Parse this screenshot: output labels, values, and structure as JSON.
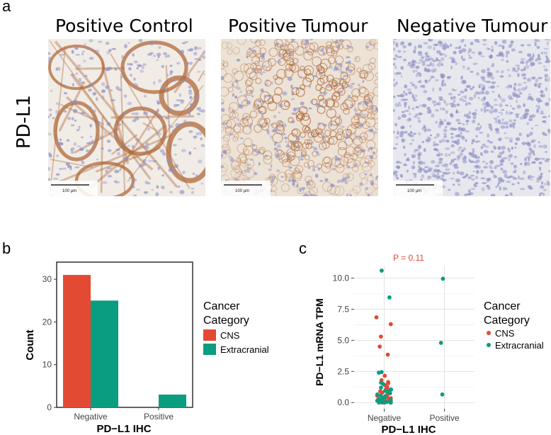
{
  "panel_a": {
    "letter": "a",
    "row_label": "PD-L1",
    "images": [
      {
        "title": "Positive Control",
        "scalebar": "100 µm",
        "stain": "membranous-network"
      },
      {
        "title": "Positive Tumour",
        "scalebar": "100 µm",
        "stain": "diffuse-membranous"
      },
      {
        "title": "Negative Tumour",
        "scalebar": "100 µm",
        "stain": "negative"
      }
    ],
    "colors": {
      "background": "#f1ece6",
      "nuclei": "#8d8fc4",
      "dab": "#b06a3a"
    }
  },
  "panel_b": {
    "letter": "b",
    "chart_data": {
      "type": "bar",
      "categories": [
        "Negative",
        "Positive"
      ],
      "series": [
        {
          "name": "CNS",
          "values": [
            31,
            0
          ],
          "color": "#e34a33"
        },
        {
          "name": "Extracranial",
          "values": [
            25,
            3
          ],
          "color": "#0a9d80"
        }
      ],
      "xlabel": "PD−L1 IHC",
      "ylabel": "Count",
      "ylim": [
        0,
        34
      ],
      "yticks": [
        0,
        10,
        20,
        30
      ],
      "legend": {
        "title": "Cancer\nCategory",
        "title_lines": [
          "Cancer",
          "Category"
        ],
        "placement": "right"
      },
      "grid": false
    }
  },
  "panel_c": {
    "letter": "c",
    "chart_data": {
      "type": "scatter",
      "categories": [
        "Negative",
        "Positive"
      ],
      "annotation": "P = 0.11",
      "annotation_color": "#e34a33",
      "xlabel": "PD−L1 IHC",
      "ylabel": "PD−L1 mRNA TPM",
      "ylim": [
        -0.5,
        11.0
      ],
      "yticks": [
        0.0,
        2.5,
        5.0,
        7.5,
        10.0
      ],
      "ytick_labels": [
        "0.0",
        "2.5",
        "5.0",
        "7.5",
        "10.0"
      ],
      "grid": true,
      "legend": {
        "title_lines": [
          "Cancer",
          "Category"
        ],
        "placement": "right"
      },
      "series": [
        {
          "name": "CNS",
          "color": "#e34a33",
          "points": [
            {
              "category": "Negative",
              "y": 6.85
            },
            {
              "category": "Negative",
              "y": 6.3
            },
            {
              "category": "Negative",
              "y": 5.3
            },
            {
              "category": "Negative",
              "y": 4.5
            },
            {
              "category": "Negative",
              "y": 3.85
            },
            {
              "category": "Negative",
              "y": 2.15
            },
            {
              "category": "Negative",
              "y": 1.8
            },
            {
              "category": "Negative",
              "y": 1.65
            },
            {
              "category": "Negative",
              "y": 1.55
            },
            {
              "category": "Negative",
              "y": 1.4
            },
            {
              "category": "Negative",
              "y": 1.25
            },
            {
              "category": "Negative",
              "y": 1.1
            },
            {
              "category": "Negative",
              "y": 1.0
            },
            {
              "category": "Negative",
              "y": 0.9
            },
            {
              "category": "Negative",
              "y": 0.8
            },
            {
              "category": "Negative",
              "y": 0.7
            },
            {
              "category": "Negative",
              "y": 0.6
            },
            {
              "category": "Negative",
              "y": 0.55
            },
            {
              "category": "Negative",
              "y": 0.45
            },
            {
              "category": "Negative",
              "y": 0.4
            },
            {
              "category": "Negative",
              "y": 0.35
            },
            {
              "category": "Negative",
              "y": 0.3
            },
            {
              "category": "Negative",
              "y": 0.25
            },
            {
              "category": "Negative",
              "y": 0.2
            },
            {
              "category": "Negative",
              "y": 0.15
            },
            {
              "category": "Negative",
              "y": 0.1
            },
            {
              "category": "Negative",
              "y": 0.1
            },
            {
              "category": "Negative",
              "y": 0.05
            },
            {
              "category": "Negative",
              "y": 0.05
            },
            {
              "category": "Negative",
              "y": 0.0
            },
            {
              "category": "Negative",
              "y": 0.0
            }
          ]
        },
        {
          "name": "Extracranial",
          "color": "#0a9d80",
          "points": [
            {
              "category": "Negative",
              "y": 10.6
            },
            {
              "category": "Negative",
              "y": 8.45
            },
            {
              "category": "Negative",
              "y": 2.45
            },
            {
              "category": "Negative",
              "y": 2.4
            },
            {
              "category": "Negative",
              "y": 1.6
            },
            {
              "category": "Negative",
              "y": 1.5
            },
            {
              "category": "Negative",
              "y": 1.2
            },
            {
              "category": "Negative",
              "y": 1.05
            },
            {
              "category": "Negative",
              "y": 0.95
            },
            {
              "category": "Negative",
              "y": 0.85
            },
            {
              "category": "Negative",
              "y": 0.75
            },
            {
              "category": "Negative",
              "y": 0.65
            },
            {
              "category": "Negative",
              "y": 0.55
            },
            {
              "category": "Negative",
              "y": 0.5
            },
            {
              "category": "Negative",
              "y": 0.4
            },
            {
              "category": "Negative",
              "y": 0.35
            },
            {
              "category": "Negative",
              "y": 0.25
            },
            {
              "category": "Negative",
              "y": 0.2
            },
            {
              "category": "Negative",
              "y": 0.15
            },
            {
              "category": "Negative",
              "y": 0.1
            },
            {
              "category": "Negative",
              "y": 0.05
            },
            {
              "category": "Negative",
              "y": 0.05
            },
            {
              "category": "Negative",
              "y": 0.0
            },
            {
              "category": "Negative",
              "y": 0.0
            },
            {
              "category": "Negative",
              "y": 0.0
            },
            {
              "category": "Positive",
              "y": 9.95
            },
            {
              "category": "Positive",
              "y": 4.8
            },
            {
              "category": "Positive",
              "y": 0.65
            }
          ]
        }
      ]
    }
  }
}
